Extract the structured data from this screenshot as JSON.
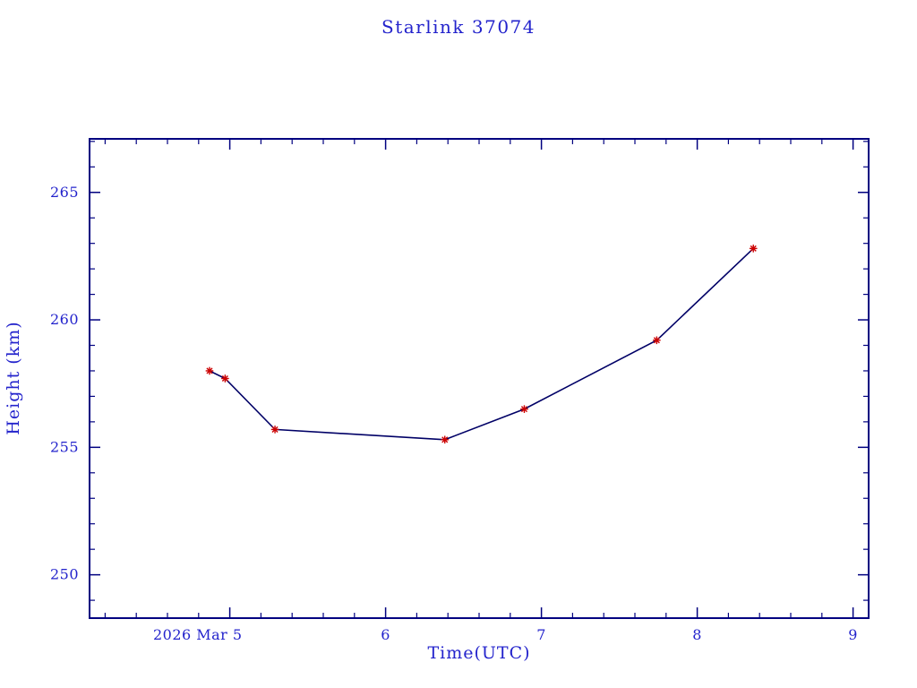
{
  "chart_data": {
    "type": "line",
    "title": "Starlink 37074",
    "xlabel": "Time(UTC)",
    "ylabel": "Height (km)",
    "x_unit": "day of month (2026 Mar, UTC)",
    "x": [
      4.87,
      4.97,
      5.29,
      6.38,
      6.89,
      7.74,
      8.36
    ],
    "y": [
      258.0,
      257.7,
      255.7,
      255.3,
      256.5,
      259.2,
      262.8
    ],
    "xlim": [
      4.1,
      9.1
    ],
    "ylim": [
      248.3,
      267.1
    ],
    "xticks": [
      {
        "value": 5,
        "label": "2026 Mar 5"
      },
      {
        "value": 6,
        "label": "6"
      },
      {
        "value": 7,
        "label": "7"
      },
      {
        "value": 8,
        "label": "8"
      },
      {
        "value": 9,
        "label": "9"
      }
    ],
    "yticks": [
      {
        "value": 250,
        "label": "250"
      },
      {
        "value": 255,
        "label": "255"
      },
      {
        "value": 260,
        "label": "260"
      },
      {
        "value": 265,
        "label": "265"
      }
    ],
    "x_minor_step": 0.2,
    "y_minor_step": 1,
    "grid": false,
    "legend": null,
    "marker": "red-asterisk",
    "colors": {
      "axis": "#000080",
      "text": "#2323cc",
      "line": "#000066",
      "marker": "#cc0000",
      "background": "#ffffff"
    }
  }
}
